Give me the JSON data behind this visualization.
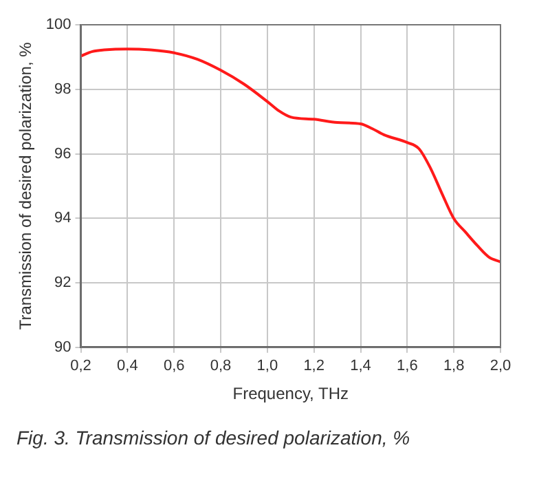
{
  "chart_data": {
    "type": "line",
    "xlabel": "Frequency, THz",
    "ylabel": "Transmission of desired polarization, %",
    "annotations": [
      "Fig. 3. Transmission of desired polarization, %"
    ],
    "x": [
      0.2,
      0.25,
      0.3,
      0.4,
      0.5,
      0.6,
      0.7,
      0.8,
      0.9,
      1.0,
      1.05,
      1.1,
      1.2,
      1.3,
      1.4,
      1.45,
      1.5,
      1.6,
      1.65,
      1.7,
      1.75,
      1.8,
      1.85,
      1.9,
      1.95,
      2.0
    ],
    "series": [
      {
        "color": "#ff1a1a",
        "values": [
          99.03,
          99.17,
          99.22,
          99.25,
          99.22,
          99.13,
          98.93,
          98.59,
          98.16,
          97.62,
          97.33,
          97.14,
          97.07,
          96.97,
          96.93,
          96.78,
          96.59,
          96.35,
          96.16,
          95.55,
          94.75,
          93.99,
          93.57,
          93.16,
          92.8,
          92.65
        ]
      }
    ],
    "xlim": [
      0.2,
      2.0
    ],
    "xticks": [
      {
        "value": 0.2,
        "label": "0,2"
      },
      {
        "value": 0.4,
        "label": "0,4"
      },
      {
        "value": 0.6,
        "label": "0,6"
      },
      {
        "value": 0.8,
        "label": "0,8"
      },
      {
        "value": 1.0,
        "label": "1,0"
      },
      {
        "value": 1.2,
        "label": "1,2"
      },
      {
        "value": 1.4,
        "label": "1,4"
      },
      {
        "value": 1.6,
        "label": "1,6"
      },
      {
        "value": 1.8,
        "label": "1,8"
      },
      {
        "value": 2.0,
        "label": "2,0"
      }
    ],
    "ylim": [
      90,
      100
    ],
    "yticks": [
      90,
      92,
      94,
      96,
      98,
      100
    ],
    "grid": true,
    "legend": false,
    "marker": "none",
    "line_style": "solid"
  }
}
